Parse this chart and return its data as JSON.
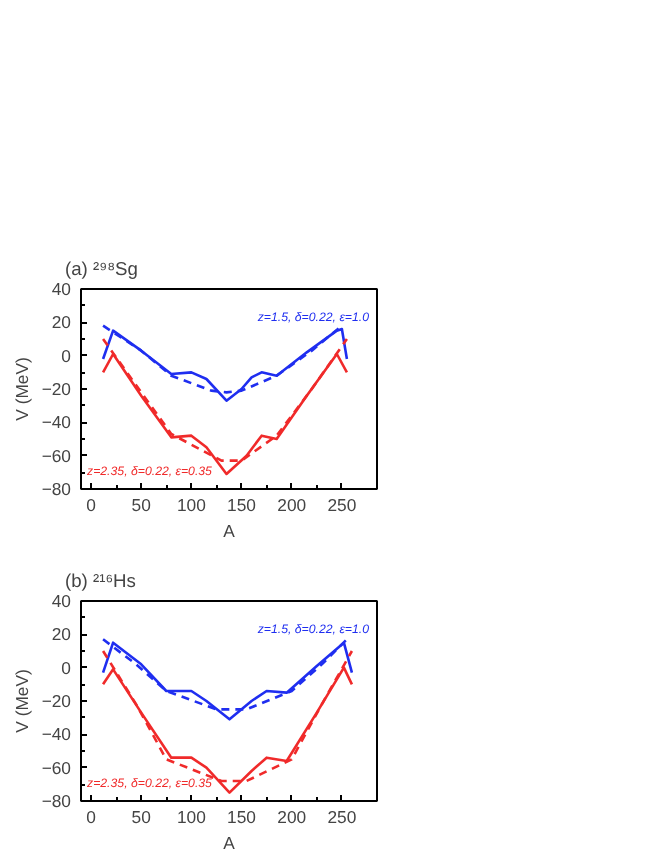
{
  "chart_data": [
    {
      "type": "line",
      "title": "(a) ²⁹⁸Sg",
      "xlabel": "A",
      "ylabel": "V (MeV)",
      "xlim": [
        -10,
        285
      ],
      "ylim": [
        -80,
        40
      ],
      "xticks": [
        0,
        50,
        100,
        150,
        200,
        250
      ],
      "yticks": [
        -80,
        -60,
        -40,
        -20,
        0,
        20,
        40
      ],
      "grid": false,
      "legend": false,
      "series": [
        {
          "name": "z=1.5, δ=0.22, ε=1.0",
          "color": "#1f2ef0",
          "line_style": "solid",
          "x": [
            12,
            22,
            50,
            80,
            100,
            115,
            135,
            150,
            160,
            170,
            185,
            215,
            245,
            250,
            255
          ],
          "values": [
            -2,
            15,
            3,
            -11,
            -10,
            -14,
            -27,
            -20,
            -13,
            -10,
            -12,
            2,
            15,
            16,
            -2
          ]
        },
        {
          "color": "#1f2ef0",
          "line_style": "dashed",
          "x": [
            12,
            50,
            80,
            120,
            135,
            150,
            185,
            220,
            250
          ],
          "values": [
            18,
            3,
            -12,
            -21,
            -22,
            -21,
            -12,
            3,
            18
          ]
        },
        {
          "name": "z=2.35, δ=0.22, ε=0.35",
          "color": "#f02a2a",
          "line_style": "solid",
          "x": [
            12,
            22,
            50,
            80,
            100,
            115,
            135,
            155,
            170,
            185,
            215,
            245,
            255
          ],
          "values": [
            -10,
            1,
            -24,
            -49,
            -48,
            -55,
            -71,
            -60,
            -48,
            -50,
            -24,
            1,
            -10
          ]
        },
        {
          "color": "#f02a2a",
          "line_style": "dashed",
          "x": [
            12,
            50,
            80,
            130,
            150,
            185,
            220,
            255
          ],
          "values": [
            10,
            -22,
            -47,
            -63,
            -63,
            -48,
            -20,
            10
          ]
        }
      ]
    },
    {
      "type": "line",
      "title": "(b) ²¹⁶Hs",
      "xlabel": "A",
      "ylabel": "V (MeV)",
      "xlim": [
        -10,
        285
      ],
      "ylim": [
        -80,
        40
      ],
      "xticks": [
        0,
        50,
        100,
        150,
        200,
        250
      ],
      "yticks": [
        -80,
        -60,
        -40,
        -20,
        0,
        20,
        40
      ],
      "grid": false,
      "legend": false,
      "series": [
        {
          "name": "z=1.5, δ=0.22, ε=1.0",
          "color": "#1f2ef0",
          "line_style": "solid",
          "x": [
            12,
            22,
            50,
            75,
            100,
            115,
            138,
            160,
            175,
            195,
            225,
            252,
            260
          ],
          "values": [
            -3,
            15,
            2,
            -14,
            -14,
            -20,
            -31,
            -20,
            -14,
            -15,
            1,
            15,
            -3
          ]
        },
        {
          "color": "#1f2ef0",
          "line_style": "dashed",
          "x": [
            12,
            45,
            75,
            125,
            155,
            200,
            230,
            255
          ],
          "values": [
            17,
            2,
            -14,
            -25,
            -25,
            -14,
            2,
            17
          ]
        },
        {
          "name": "z=2.35, δ=0.22, ε=0.35",
          "color": "#f02a2a",
          "line_style": "solid",
          "x": [
            12,
            22,
            50,
            80,
            100,
            115,
            138,
            160,
            175,
            195,
            225,
            252,
            260
          ],
          "values": [
            -10,
            -1,
            -27,
            -54,
            -54,
            -60,
            -75,
            -62,
            -54,
            -56,
            -27,
            0,
            -10
          ]
        },
        {
          "color": "#f02a2a",
          "line_style": "dashed",
          "x": [
            12,
            45,
            75,
            130,
            155,
            200,
            230,
            260
          ],
          "values": [
            10,
            -22,
            -55,
            -68,
            -68,
            -55,
            -22,
            10
          ]
        }
      ]
    }
  ]
}
